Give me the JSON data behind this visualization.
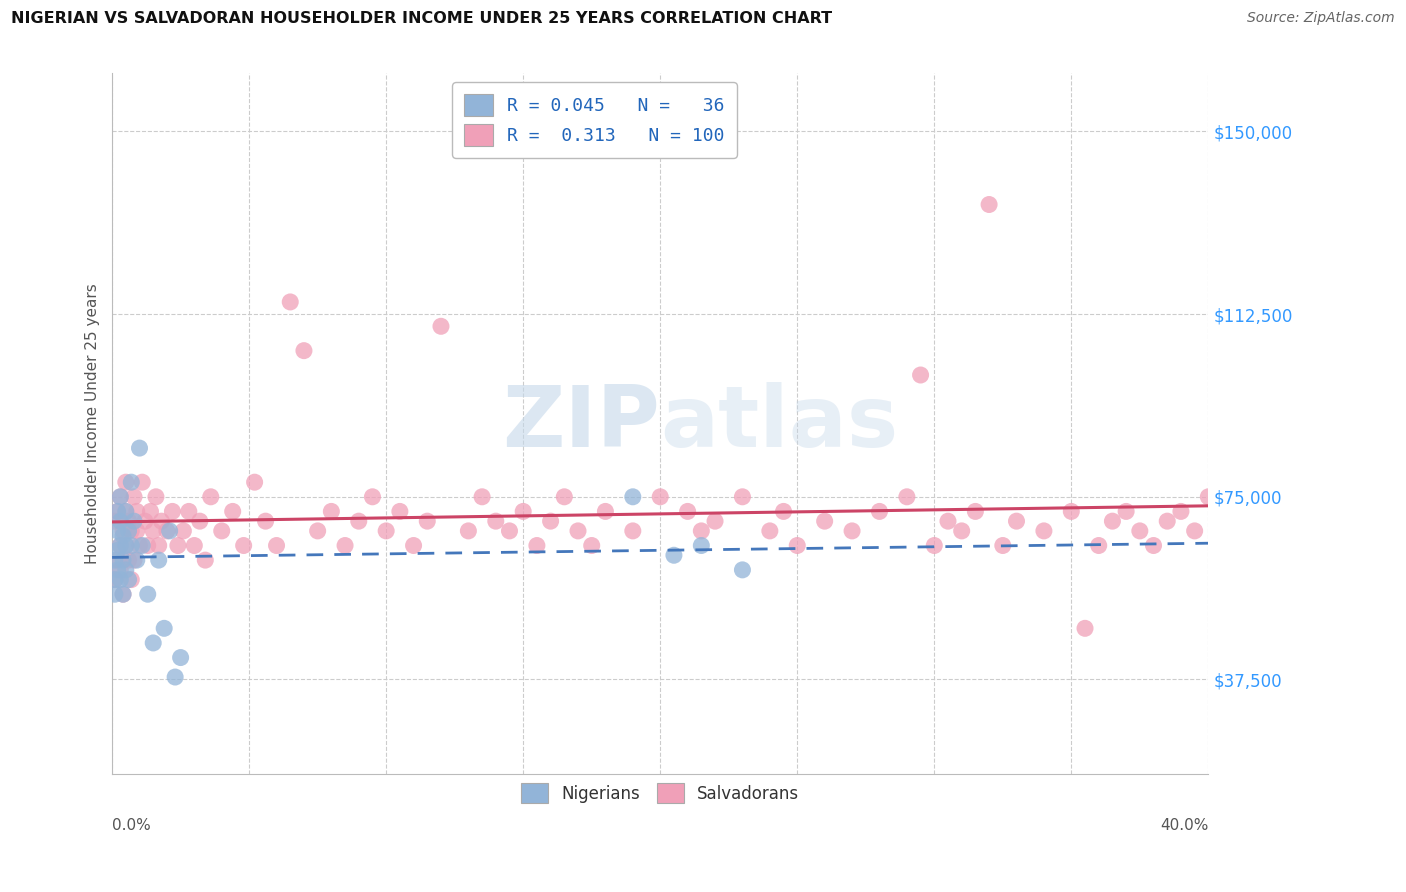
{
  "title": "NIGERIAN VS SALVADORAN HOUSEHOLDER INCOME UNDER 25 YEARS CORRELATION CHART",
  "source": "Source: ZipAtlas.com",
  "ylabel": "Householder Income Under 25 years",
  "ytick_values": [
    37500,
    75000,
    112500,
    150000
  ],
  "ytick_labels": [
    "$37,500",
    "$75,000",
    "$112,500",
    "$150,000"
  ],
  "xmin": 0.0,
  "xmax": 0.4,
  "ymin": 18000,
  "ymax": 162000,
  "nigerian_R": 0.045,
  "nigerian_N": 36,
  "salvadoran_R": 0.313,
  "salvadoran_N": 100,
  "blue_dot_color": "#92b4d8",
  "pink_dot_color": "#f0a0b8",
  "blue_line_color": "#4477bb",
  "pink_line_color": "#cc4466",
  "text_blue_color": "#2266bb",
  "label_blue_color": "#3399ff",
  "axis_label_color": "#555555",
  "grid_color": "#cccccc",
  "watermark_color": "#c5d8ea",
  "background_color": "#ffffff",
  "nigerian_x": [
    0.001,
    0.001,
    0.001,
    0.002,
    0.002,
    0.002,
    0.002,
    0.003,
    0.003,
    0.003,
    0.003,
    0.004,
    0.004,
    0.004,
    0.005,
    0.005,
    0.005,
    0.006,
    0.006,
    0.007,
    0.007,
    0.008,
    0.009,
    0.01,
    0.011,
    0.013,
    0.015,
    0.017,
    0.019,
    0.021,
    0.023,
    0.025,
    0.19,
    0.205,
    0.215,
    0.23
  ],
  "nigerian_y": [
    58000,
    62000,
    55000,
    68000,
    64000,
    60000,
    72000,
    65000,
    70000,
    58000,
    75000,
    62000,
    67000,
    55000,
    72000,
    65000,
    60000,
    68000,
    58000,
    65000,
    78000,
    70000,
    62000,
    85000,
    65000,
    55000,
    45000,
    62000,
    48000,
    68000,
    38000,
    42000,
    75000,
    63000,
    65000,
    60000
  ],
  "salvadoran_x": [
    0.001,
    0.001,
    0.002,
    0.002,
    0.003,
    0.003,
    0.003,
    0.004,
    0.004,
    0.005,
    0.005,
    0.005,
    0.006,
    0.006,
    0.007,
    0.007,
    0.008,
    0.008,
    0.009,
    0.009,
    0.01,
    0.011,
    0.012,
    0.013,
    0.014,
    0.015,
    0.016,
    0.017,
    0.018,
    0.02,
    0.022,
    0.024,
    0.026,
    0.028,
    0.03,
    0.032,
    0.034,
    0.036,
    0.04,
    0.044,
    0.048,
    0.052,
    0.056,
    0.06,
    0.065,
    0.07,
    0.075,
    0.08,
    0.085,
    0.09,
    0.095,
    0.1,
    0.105,
    0.11,
    0.115,
    0.12,
    0.13,
    0.135,
    0.14,
    0.145,
    0.15,
    0.155,
    0.16,
    0.165,
    0.17,
    0.175,
    0.18,
    0.19,
    0.2,
    0.21,
    0.215,
    0.22,
    0.23,
    0.24,
    0.245,
    0.25,
    0.26,
    0.27,
    0.28,
    0.29,
    0.295,
    0.3,
    0.305,
    0.31,
    0.315,
    0.32,
    0.325,
    0.33,
    0.34,
    0.35,
    0.355,
    0.36,
    0.365,
    0.37,
    0.375,
    0.38,
    0.385,
    0.39,
    0.395,
    0.4
  ],
  "salvadoran_y": [
    58000,
    70000,
    62000,
    72000,
    65000,
    75000,
    60000,
    68000,
    55000,
    72000,
    65000,
    78000,
    62000,
    70000,
    68000,
    58000,
    75000,
    62000,
    68000,
    72000,
    65000,
    78000,
    70000,
    65000,
    72000,
    68000,
    75000,
    65000,
    70000,
    68000,
    72000,
    65000,
    68000,
    72000,
    65000,
    70000,
    62000,
    75000,
    68000,
    72000,
    65000,
    78000,
    70000,
    65000,
    115000,
    105000,
    68000,
    72000,
    65000,
    70000,
    75000,
    68000,
    72000,
    65000,
    70000,
    110000,
    68000,
    75000,
    70000,
    68000,
    72000,
    65000,
    70000,
    75000,
    68000,
    65000,
    72000,
    68000,
    75000,
    72000,
    68000,
    70000,
    75000,
    68000,
    72000,
    65000,
    70000,
    68000,
    72000,
    75000,
    100000,
    65000,
    70000,
    68000,
    72000,
    135000,
    65000,
    70000,
    68000,
    72000,
    48000,
    65000,
    70000,
    72000,
    68000,
    65000,
    70000,
    72000,
    68000,
    75000
  ]
}
